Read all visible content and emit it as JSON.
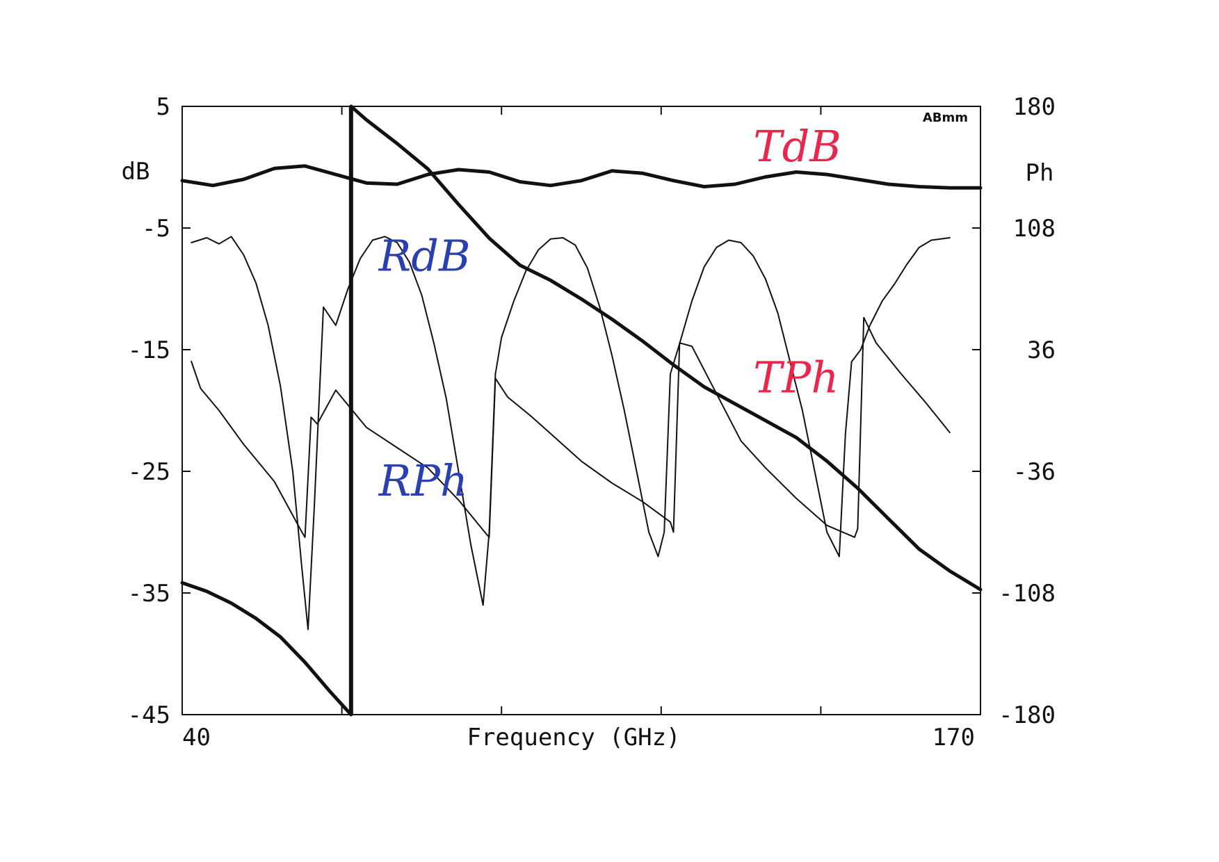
{
  "chart_data": {
    "type": "line",
    "title": "",
    "xlabel": "Frequency (GHz)",
    "corner_label": "ABmm",
    "left_axis": {
      "unit": "dB",
      "ticks": [
        "5",
        "-5",
        "-15",
        "-25",
        "-35",
        "-45"
      ],
      "tick_values": [
        5,
        -5,
        -15,
        -25,
        -35,
        -45
      ],
      "range": [
        -45,
        5
      ]
    },
    "right_axis": {
      "unit": "Ph",
      "ticks": [
        "180",
        "108",
        "36",
        "-36",
        "-108",
        "-180"
      ],
      "tick_values": [
        180,
        108,
        36,
        -36,
        -108,
        -180
      ],
      "range": [
        -180,
        180
      ]
    },
    "x_tick_labels": [
      "40",
      "170"
    ],
    "x_range": [
      40,
      170
    ],
    "marker": {
      "x": 67.5
    },
    "annotations": [
      {
        "text": "TdB",
        "color": "#e8274b",
        "x": 133,
        "y": 0.5,
        "axis": "left"
      },
      {
        "text": "RdB",
        "color": "#2a3fb0",
        "x": 72,
        "y": -8.5,
        "axis": "left"
      },
      {
        "text": "TPh",
        "color": "#e8274b",
        "x": 133,
        "y": -18.5,
        "axis": "left"
      },
      {
        "text": "RPh",
        "color": "#2a3fb0",
        "x": 72,
        "y": -27,
        "axis": "left"
      }
    ],
    "series": [
      {
        "name": "TdB",
        "axis": "left",
        "weight": "thick",
        "x": [
          40,
          45,
          50,
          55,
          60,
          65,
          70,
          75,
          80,
          85,
          90,
          95,
          100,
          105,
          110,
          115,
          120,
          125,
          130,
          135,
          140,
          145,
          150,
          155,
          160,
          165,
          170
        ],
        "y": [
          -1.1,
          -1.5,
          -1.0,
          -0.1,
          0.1,
          -0.6,
          -1.3,
          -1.4,
          -0.6,
          -0.2,
          -0.4,
          -1.2,
          -1.5,
          -1.1,
          -0.3,
          -0.5,
          -1.1,
          -1.6,
          -1.4,
          -0.8,
          -0.4,
          -0.6,
          -1.0,
          -1.4,
          -1.6,
          -1.7,
          -1.7
        ]
      },
      {
        "name": "RdB",
        "axis": "left",
        "weight": "thin",
        "x": [
          41.5,
          44,
          46,
          48,
          50,
          52,
          54,
          56,
          58,
          59.5,
          60.5,
          61.5,
          63,
          65,
          67,
          69,
          71,
          73,
          75,
          77,
          79,
          81,
          83,
          85,
          87,
          89,
          90,
          91,
          92,
          94,
          96,
          98,
          100,
          102,
          104,
          106,
          108,
          110,
          112,
          114,
          116,
          117.5,
          118.5,
          119.5,
          121,
          123,
          125,
          127,
          129,
          131,
          133,
          135,
          137,
          139,
          141,
          143,
          145,
          147,
          148,
          149,
          150.5,
          152,
          154,
          156,
          158,
          160,
          162,
          165
        ],
        "y": [
          -6.2,
          -5.8,
          -6.3,
          -5.7,
          -7.2,
          -9.5,
          -13,
          -18,
          -25,
          -33,
          -38,
          -28,
          -11.5,
          -13,
          -10,
          -7.5,
          -6,
          -5.7,
          -6.2,
          -7.8,
          -10.5,
          -14.5,
          -19,
          -25,
          -31,
          -36,
          -30,
          -17,
          -14,
          -11,
          -8.5,
          -6.8,
          -5.9,
          -5.8,
          -6.4,
          -8.3,
          -11.5,
          -15.5,
          -20,
          -25,
          -30,
          -32,
          -30,
          -17,
          -14.5,
          -11,
          -8.2,
          -6.6,
          -6,
          -6.2,
          -7.3,
          -9.2,
          -12,
          -16,
          -20,
          -25,
          -30,
          -32,
          -22,
          -16,
          -15,
          -13,
          -11,
          -9.6,
          -8,
          -6.6,
          -6,
          -5.8
        ]
      },
      {
        "name": "TPh",
        "axis": "right",
        "weight": "thick",
        "x": [
          40,
          44,
          48,
          52,
          56,
          60,
          64,
          67.5,
          67.5,
          70,
          75,
          80,
          85,
          90,
          95,
          100,
          105,
          110,
          115,
          120,
          125,
          130,
          135,
          140,
          145,
          150,
          155,
          160,
          165,
          170
        ],
        "y": [
          -102,
          -107,
          -114,
          -123,
          -134,
          -149,
          -166,
          -180,
          180,
          172,
          158,
          143,
          122,
          102,
          86,
          77,
          66,
          54,
          41,
          27,
          14,
          4,
          -6,
          -16,
          -30,
          -46,
          -64,
          -82,
          -95,
          -106
        ]
      },
      {
        "name": "RPh",
        "axis": "right",
        "weight": "thin",
        "x": [
          41.5,
          43,
          46,
          50,
          55,
          59.5,
          60,
          61,
          62,
          65,
          70,
          75,
          80,
          85,
          89.5,
          90,
          91,
          93,
          97,
          101,
          105,
          110,
          115,
          119.5,
          120,
          121,
          123,
          127,
          131,
          135,
          140,
          145,
          149.5,
          150,
          151,
          153,
          157,
          161,
          165
        ],
        "y": [
          29,
          13,
          0,
          -20,
          -42,
          -72,
          -75,
          -4,
          -8,
          12,
          -10,
          -22,
          -34,
          -53,
          -73,
          -75,
          19,
          8,
          -4,
          -17,
          -30,
          -43,
          -54,
          -66,
          -72,
          40,
          38,
          10,
          -18,
          -34,
          -52,
          -68,
          -75,
          -70,
          55,
          40,
          22,
          5,
          -13
        ]
      }
    ]
  }
}
